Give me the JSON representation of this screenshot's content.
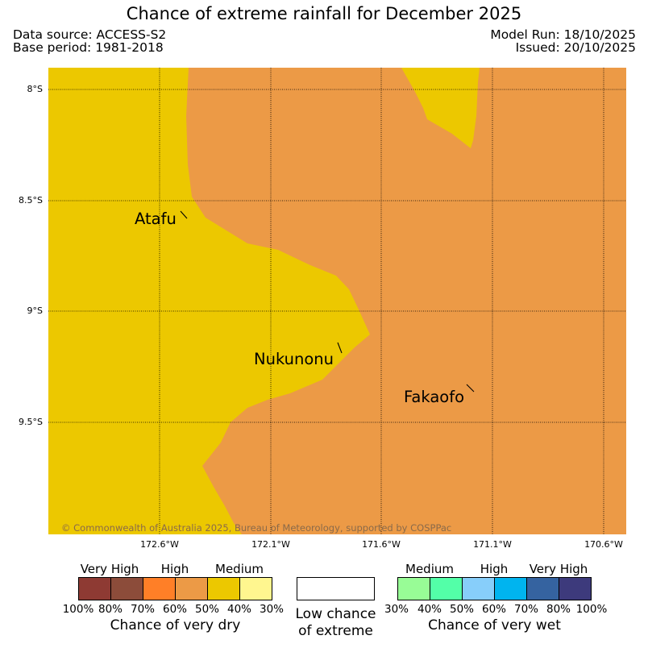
{
  "title": "Chance of extreme rainfall for December 2025",
  "meta": {
    "data_source": "Data source: ACCESS-S2",
    "base_period": "Base period: 1981-2018",
    "model_run": "Model Run: 18/10/2025",
    "issued": "Issued: 20/10/2025"
  },
  "map": {
    "lat_labels": [
      "8°S",
      "8.5°S",
      "9°S",
      "9.5°S"
    ],
    "lon_labels": [
      "172.6°W",
      "172.1°W",
      "171.6°W",
      "171.1°W",
      "170.6°W"
    ],
    "places": [
      {
        "name": "Atafu"
      },
      {
        "name": "Nukunonu"
      },
      {
        "name": "Fakaofo"
      }
    ],
    "regions": [
      {
        "category": "Medium (dry)",
        "color": "#ecc800"
      },
      {
        "category": "High (dry)",
        "color": "#ec9a46"
      }
    ],
    "copyright": "© Commonwealth of Australia 2025, Bureau of Meteorology, supported by COSPPac"
  },
  "legend": {
    "dry": {
      "categories": [
        "Very High",
        "High",
        "Medium"
      ],
      "colors": [
        "#8e3a33",
        "#8c4c3a",
        "#ff7f27",
        "#ec9a46",
        "#ecc800",
        "#fff68f"
      ],
      "ticks": [
        "100%",
        "80%",
        "70%",
        "60%",
        "50%",
        "40%",
        "30%"
      ],
      "caption": "Chance of very dry"
    },
    "low": {
      "line1": "Low chance",
      "line2": "of extreme"
    },
    "wet": {
      "categories": [
        "Medium",
        "High",
        "Very High"
      ],
      "colors": [
        "#98fc96",
        "#53ffa8",
        "#87cefa",
        "#00b4ef",
        "#3563a0",
        "#3d3a7c"
      ],
      "ticks": [
        "30%",
        "40%",
        "50%",
        "60%",
        "70%",
        "80%",
        "100%"
      ],
      "caption": "Chance of very wet"
    }
  }
}
